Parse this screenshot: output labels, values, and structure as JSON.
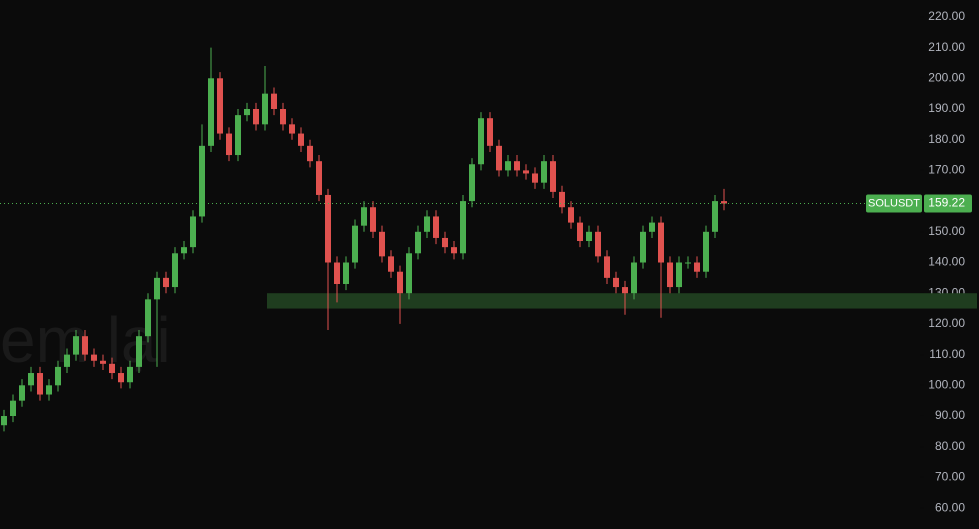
{
  "chart_data": {
    "type": "candlestick",
    "watermark": "em lại",
    "up_color": "#4caf50",
    "down_color": "#e0524f",
    "background": "#0b0b0b",
    "ylim": [
      53.2,
      225.5
    ],
    "yticks": [
      {
        "value": 60,
        "label": "60.00"
      },
      {
        "value": 70,
        "label": "70.00"
      },
      {
        "value": 80,
        "label": "80.00"
      },
      {
        "value": 90,
        "label": "90.00"
      },
      {
        "value": 100,
        "label": "100.00"
      },
      {
        "value": 110,
        "label": "110.00"
      },
      {
        "value": 120,
        "label": "120.00"
      },
      {
        "value": 130,
        "label": "130.00"
      },
      {
        "value": 140,
        "label": "140.00"
      },
      {
        "value": 150,
        "label": "150.00"
      },
      {
        "value": 160,
        "label": "160.00"
      },
      {
        "value": 170,
        "label": "170.00"
      },
      {
        "value": 180,
        "label": "180.00"
      },
      {
        "value": 190,
        "label": "190.00"
      },
      {
        "value": 200,
        "label": "200.00"
      },
      {
        "value": 210,
        "label": "210.00"
      },
      {
        "value": 220,
        "label": "220.00"
      }
    ],
    "open": [
      87,
      90,
      95,
      100,
      104,
      97,
      100,
      106,
      110,
      116,
      110,
      108,
      107,
      104,
      101,
      106,
      116,
      128,
      135,
      132,
      143,
      145,
      155,
      178,
      200,
      182,
      175,
      188,
      190,
      185,
      195,
      190,
      185,
      182,
      178,
      173,
      162,
      140,
      133,
      140,
      152,
      158,
      150,
      142,
      137,
      130,
      143,
      150,
      155,
      148,
      145,
      143,
      160,
      172,
      187,
      178,
      170,
      173,
      170,
      169,
      166,
      173,
      163,
      158,
      153,
      147,
      150,
      142,
      135,
      132,
      130,
      140,
      150,
      153,
      140,
      132,
      140,
      140,
      137,
      150,
      160
    ],
    "high": [
      92,
      97,
      102,
      106,
      106,
      102,
      108,
      112,
      118,
      118,
      112,
      110,
      109,
      106,
      108,
      118,
      130,
      137,
      137,
      145,
      147,
      157,
      185,
      210,
      202,
      184,
      190,
      192,
      192,
      204,
      197,
      192,
      187,
      184,
      180,
      175,
      164,
      142,
      142,
      154,
      160,
      160,
      152,
      144,
      139,
      145,
      152,
      157,
      157,
      150,
      147,
      162,
      174,
      189,
      189,
      180,
      175,
      175,
      172,
      171,
      175,
      175,
      165,
      160,
      155,
      152,
      152,
      144,
      137,
      134,
      142,
      152,
      155,
      155,
      142,
      142,
      142,
      142,
      152,
      162,
      164
    ],
    "low": [
      85,
      88,
      93,
      98,
      95,
      95,
      98,
      104,
      108,
      108,
      106,
      105,
      102,
      99,
      99,
      104,
      114,
      106,
      130,
      130,
      141,
      143,
      153,
      176,
      180,
      173,
      173,
      186,
      183,
      183,
      188,
      183,
      180,
      176,
      171,
      160,
      118,
      127,
      131,
      138,
      150,
      148,
      140,
      135,
      120,
      128,
      141,
      148,
      146,
      143,
      141,
      141,
      158,
      170,
      176,
      168,
      168,
      168,
      167,
      164,
      164,
      161,
      156,
      151,
      145,
      145,
      140,
      133,
      130,
      123,
      128,
      138,
      148,
      122,
      130,
      130,
      138,
      135,
      135,
      148,
      157
    ],
    "close": [
      90,
      95,
      100,
      104,
      97,
      100,
      106,
      110,
      116,
      110,
      108,
      107,
      104,
      101,
      106,
      116,
      128,
      135,
      132,
      143,
      145,
      155,
      178,
      200,
      182,
      175,
      188,
      190,
      185,
      195,
      190,
      185,
      182,
      178,
      173,
      162,
      140,
      133,
      140,
      152,
      158,
      150,
      142,
      137,
      130,
      143,
      150,
      155,
      148,
      145,
      143,
      160,
      172,
      187,
      178,
      170,
      173,
      170,
      169,
      166,
      173,
      163,
      158,
      153,
      147,
      150,
      142,
      135,
      132,
      130,
      140,
      150,
      153,
      140,
      132,
      140,
      140,
      137,
      150,
      160,
      159.22
    ],
    "zone": {
      "low": 125,
      "high": 130,
      "color": "#1f3d1f"
    },
    "last_price": {
      "symbol": "SOLUSDT",
      "value": 159.22
    }
  }
}
